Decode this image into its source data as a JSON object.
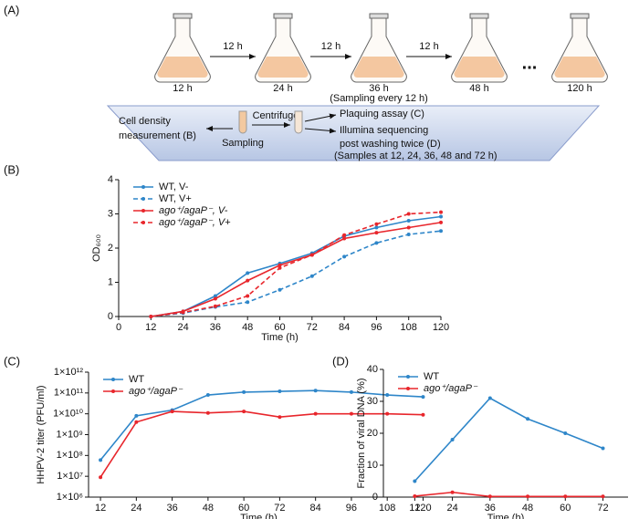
{
  "diagram": {
    "panel_label": "(A)",
    "flasks": [
      "12 h",
      "24 h",
      "36 h",
      "48 h",
      "120 h"
    ],
    "arrows": [
      "12 h",
      "12 h",
      "12 h"
    ],
    "ellipsis": "...",
    "sampling_note": "(Sampling  every 12 h)",
    "cell_density": [
      "Cell density",
      "measurement (B)"
    ],
    "sampling": "Sampling",
    "centrifuge": "Centrifuge",
    "plaquing": "Plaquing assay (C)",
    "illumina": [
      "Illumina sequencing",
      "post washing twice (D)"
    ],
    "samples_note": "(Samples at 12, 24, 36, 48 and 72 h)"
  },
  "chart_data": [
    {
      "type": "line",
      "label": "(B)",
      "xlabel": "Time (h)",
      "ylabel": "OD₆₀₀",
      "x": [
        12,
        24,
        36,
        48,
        60,
        72,
        84,
        96,
        108,
        120
      ],
      "xlim": [
        0,
        120
      ],
      "xticks": [
        0,
        12,
        24,
        36,
        48,
        60,
        72,
        84,
        96,
        108,
        120
      ],
      "ylim": [
        0,
        4
      ],
      "yticks": [
        0,
        1,
        2,
        3,
        4
      ],
      "log": false,
      "legend": "upper left",
      "series": [
        {
          "name": "WT, V-",
          "color": "#2e86c9",
          "linestyle": "solid",
          "values": [
            0,
            0.15,
            0.6,
            1.27,
            1.55,
            1.85,
            2.35,
            2.6,
            2.8,
            2.92
          ]
        },
        {
          "name": "WT, V+",
          "color": "#2e86c9",
          "linestyle": "dashed",
          "values": [
            0,
            0.1,
            0.28,
            0.42,
            0.78,
            1.18,
            1.75,
            2.15,
            2.4,
            2.5
          ]
        },
        {
          "name": "ago⁺/agaP⁻, V-",
          "color": "#e8262c",
          "linestyle": "solid",
          "values": [
            0,
            0.15,
            0.52,
            1.05,
            1.5,
            1.8,
            2.28,
            2.45,
            2.6,
            2.75
          ]
        },
        {
          "name": "ago⁺/agaP⁻, V+",
          "color": "#e8262c",
          "linestyle": "dashed",
          "values": [
            0,
            0.12,
            0.3,
            0.6,
            1.42,
            1.8,
            2.38,
            2.7,
            3.0,
            3.05
          ]
        }
      ]
    },
    {
      "type": "line",
      "label": "(C)",
      "xlabel": "Time (h)",
      "ylabel": "HHPV-2 titer (PFU/ml)",
      "x": [
        12,
        24,
        36,
        48,
        60,
        72,
        84,
        96,
        108,
        120
      ],
      "xlim": [
        8,
        122
      ],
      "xticks": [
        12,
        24,
        36,
        48,
        60,
        72,
        84,
        96,
        108,
        120
      ],
      "ylim": [
        1000000,
        1000000000000
      ],
      "log": true,
      "legend": "upper left",
      "yticks": [
        {
          "value": 1000000,
          "label": "1×10⁶"
        },
        {
          "value": 10000000,
          "label": "1×10⁷"
        },
        {
          "value": 100000000,
          "label": "1×10⁸"
        },
        {
          "value": 1000000000,
          "label": "1×10⁹"
        },
        {
          "value": 10000000000,
          "label": "1×10¹⁰"
        },
        {
          "value": 100000000000,
          "label": "1×10¹¹"
        },
        {
          "value": 1000000000000,
          "label": "1×10¹²"
        }
      ],
      "series": [
        {
          "name": "WT",
          "color": "#2e86c9",
          "linestyle": "solid",
          "values": [
            60000000,
            8000000000,
            15000000000,
            80000000000,
            110000000000,
            120000000000,
            130000000000,
            110000000000,
            80000000000,
            65000000000
          ]
        },
        {
          "name": "ago⁺/agaP⁻",
          "color": "#e8262c",
          "linestyle": "solid",
          "values": [
            9000000,
            4000000000,
            13000000000,
            11000000000,
            13000000000,
            7000000000,
            10000000000,
            10000000000,
            10000000000,
            9000000000
          ]
        }
      ]
    },
    {
      "type": "line",
      "label": "(D)",
      "xlabel": "Time (h)",
      "ylabel": "Fraction of viral DNA (%)",
      "x": [
        12,
        24,
        36,
        48,
        60,
        72
      ],
      "xlim": [
        2,
        80
      ],
      "xticks": [
        12,
        24,
        36,
        48,
        60,
        72
      ],
      "ylim": [
        0,
        40
      ],
      "yticks": [
        0,
        10,
        20,
        30,
        40
      ],
      "log": false,
      "legend": "upper left",
      "series": [
        {
          "name": "WT",
          "color": "#2e86c9",
          "linestyle": "solid",
          "values": [
            5,
            18,
            31,
            24.5,
            20,
            15.3
          ]
        },
        {
          "name": "ago⁺/agaP⁻",
          "color": "#e8262c",
          "linestyle": "solid",
          "values": [
            0.3,
            1.5,
            0.2,
            0.2,
            0.2,
            0.2
          ]
        }
      ]
    }
  ]
}
